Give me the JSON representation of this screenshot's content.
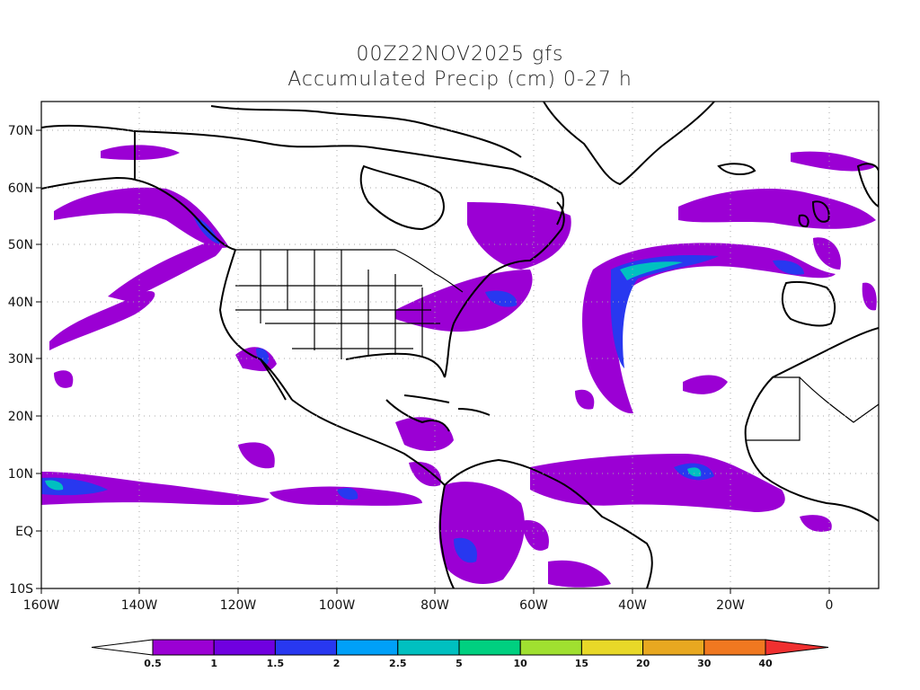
{
  "title_line1": "00Z22NOV2025 gfs",
  "title_line2": "Accumulated Precip (cm) 0-27 h",
  "lon_labels": [
    "160W",
    "140W",
    "120W",
    "100W",
    "80W",
    "60W",
    "40W",
    "20W",
    "0"
  ],
  "lat_labels": [
    "70N",
    "60N",
    "50N",
    "40N",
    "30N",
    "20N",
    "10N",
    "EQ",
    "10S"
  ],
  "colorbar": {
    "labels": [
      "0.5",
      "1",
      "1.5",
      "2",
      "2.5",
      "5",
      "10",
      "15",
      "20",
      "30",
      "40"
    ],
    "colors": [
      "#ffffff",
      "#9b00d4",
      "#7000e0",
      "#2838f0",
      "#00a0f8",
      "#00c0c0",
      "#00d080",
      "#a0e030",
      "#e8d828",
      "#e8a820",
      "#f07820",
      "#f03030"
    ]
  },
  "colors": {
    "precip_light": "#9b00d4",
    "precip_medium": "#7000e0",
    "precip_blue": "#2838f0",
    "precip_cyan": "#00c0c0",
    "coastline": "#000000",
    "grid": "#aaaaaa"
  }
}
